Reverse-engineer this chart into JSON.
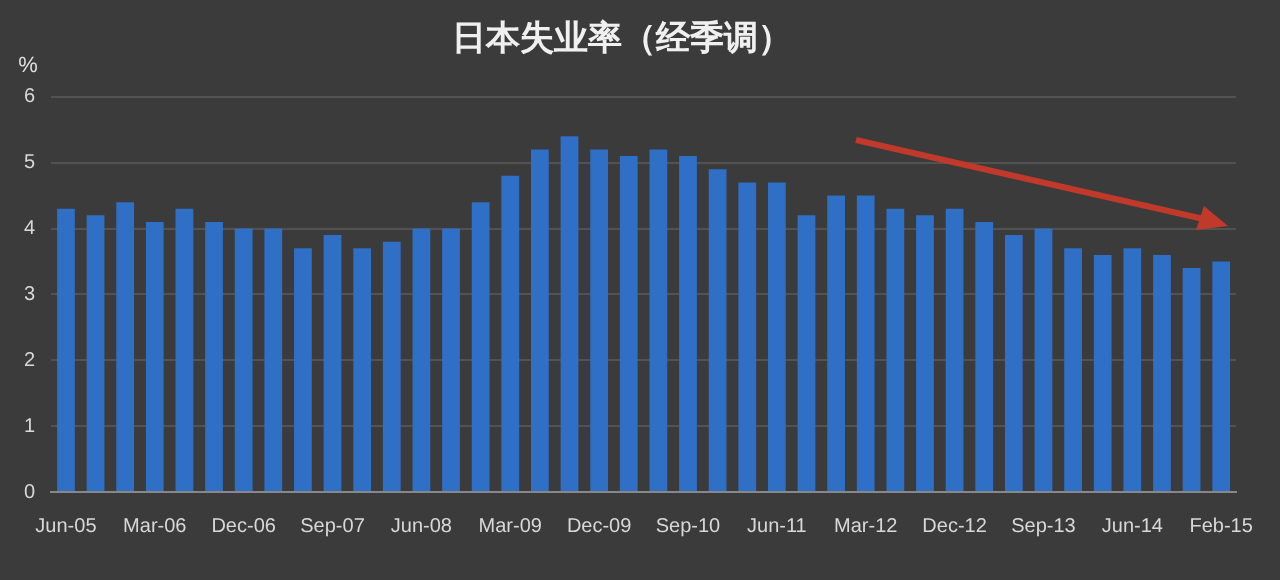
{
  "chart_data": {
    "type": "bar",
    "title": "日本失业率（经季调）",
    "ylabel": "%",
    "categories": [
      "Jun-05",
      null,
      null,
      "Mar-06",
      null,
      null,
      "Dec-06",
      null,
      null,
      "Sep-07",
      null,
      null,
      "Jun-08",
      null,
      null,
      "Mar-09",
      null,
      null,
      "Dec-09",
      null,
      null,
      "Sep-10",
      null,
      null,
      "Jun-11",
      null,
      null,
      "Mar-12",
      null,
      null,
      "Dec-12",
      null,
      null,
      "Sep-13",
      null,
      null,
      "Jun-14",
      null,
      null,
      "Feb-15"
    ],
    "values": [
      4.3,
      4.2,
      4.4,
      4.1,
      4.3,
      4.1,
      4.0,
      4.0,
      3.7,
      3.9,
      3.7,
      3.8,
      4.0,
      4.0,
      4.4,
      4.8,
      5.2,
      5.4,
      5.2,
      5.1,
      5.2,
      5.1,
      4.9,
      4.7,
      4.7,
      4.2,
      4.5,
      4.5,
      4.3,
      4.2,
      4.3,
      4.1,
      3.9,
      4.0,
      3.7,
      3.6,
      3.7,
      3.6,
      3.4,
      3.5
    ],
    "color": "#2f6fc6",
    "ylim": [
      0,
      6
    ],
    "yticks": [
      0,
      1,
      2,
      3,
      4,
      5,
      6
    ],
    "grid": "y"
  }
}
